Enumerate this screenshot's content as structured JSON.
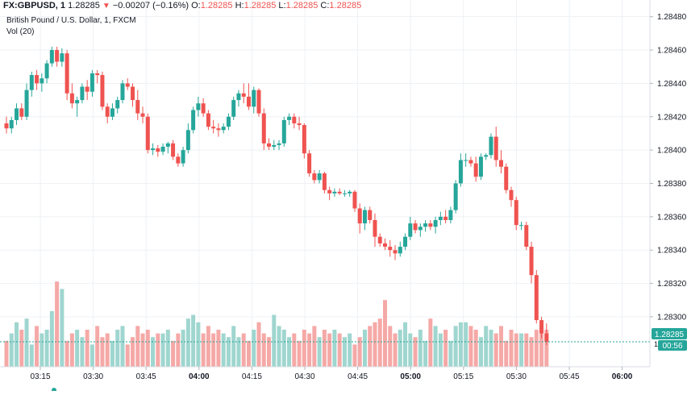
{
  "header": {
    "symbol": "FX:GBPUSD, 1",
    "last": "1.28285",
    "change": "−0.00207 (−0.16%)",
    "o_label": "O:",
    "o_value": "1.28285",
    "h_label": "H:",
    "h_value": "1.28285",
    "l_label": "L:",
    "l_value": "1.28285",
    "c_label": "C:",
    "c_value": "1.28285",
    "subtitle": "British Pound / U.S. Dollar, 1, FXCM",
    "volume_label": "Vol (20)"
  },
  "colors": {
    "up": "#26a69a",
    "down": "#ef5350",
    "vol_up": "#9fd6cf",
    "vol_down": "#f5a9a7",
    "grid": "#eef1f5",
    "price_line": "#26a69a",
    "timer_bg": "#26a69a"
  },
  "chart_data": {
    "type": "candlestick",
    "title": "British Pound / U.S. Dollar, 1, FXCM",
    "x_ticks": [
      "03:15",
      "03:30",
      "03:45",
      "04:00",
      "04:15",
      "04:30",
      "04:45",
      "05:00",
      "05:15",
      "05:30",
      "05:45",
      "06:00"
    ],
    "y_ticks": [
      "1.28480",
      "1.28460",
      "1.28440",
      "1.28420",
      "1.28400",
      "1.28380",
      "1.28360",
      "1.28340",
      "1.28320",
      "1.28300"
    ],
    "ylim": [
      1.2827,
      1.2849
    ],
    "last_price_label": "1.28285",
    "countdown": "00:56",
    "grid": true,
    "candles": [
      [
        1.28416,
        1.2842,
        1.2841,
        1.28413
      ],
      [
        1.28413,
        1.2842,
        1.2841,
        1.28418
      ],
      [
        1.28418,
        1.28428,
        1.28415,
        1.28425
      ],
      [
        1.28425,
        1.28428,
        1.28418,
        1.2842
      ],
      [
        1.2842,
        1.2844,
        1.28418,
        1.28436
      ],
      [
        1.28436,
        1.28447,
        1.28432,
        1.28445
      ],
      [
        1.28445,
        1.28448,
        1.28436,
        1.2844
      ],
      [
        1.2844,
        1.28446,
        1.28435,
        1.28443
      ],
      [
        1.28443,
        1.28454,
        1.2844,
        1.28452
      ],
      [
        1.28452,
        1.28462,
        1.2845,
        1.2846
      ],
      [
        1.2846,
        1.28462,
        1.2845,
        1.28453
      ],
      [
        1.28453,
        1.28461,
        1.2845,
        1.28458
      ],
      [
        1.28458,
        1.2846,
        1.2843,
        1.28434
      ],
      [
        1.28434,
        1.2844,
        1.28425,
        1.28428
      ],
      [
        1.28428,
        1.28432,
        1.2842,
        1.2843
      ],
      [
        1.2843,
        1.2844,
        1.28428,
        1.28438
      ],
      [
        1.28438,
        1.28442,
        1.2843,
        1.28435
      ],
      [
        1.28435,
        1.28448,
        1.28432,
        1.28446
      ],
      [
        1.28446,
        1.28448,
        1.2844,
        1.28445
      ],
      [
        1.28445,
        1.28447,
        1.28424,
        1.28426
      ],
      [
        1.28426,
        1.28428,
        1.28416,
        1.2842
      ],
      [
        1.2842,
        1.28428,
        1.28418,
        1.28425
      ],
      [
        1.28425,
        1.28432,
        1.28422,
        1.2843
      ],
      [
        1.2843,
        1.28442,
        1.28428,
        1.2844
      ],
      [
        1.2844,
        1.28443,
        1.28436,
        1.28438
      ],
      [
        1.28438,
        1.2844,
        1.28426,
        1.2843
      ],
      [
        1.2843,
        1.28436,
        1.28418,
        1.28422
      ],
      [
        1.28422,
        1.28426,
        1.28416,
        1.2842
      ],
      [
        1.2842,
        1.28422,
        1.28398,
        1.284
      ],
      [
        1.284,
        1.28404,
        1.28397,
        1.28401
      ],
      [
        1.28401,
        1.28403,
        1.28396,
        1.28399
      ],
      [
        1.28399,
        1.28404,
        1.28397,
        1.28402
      ],
      [
        1.28402,
        1.28405,
        1.28398,
        1.28404
      ],
      [
        1.28404,
        1.28406,
        1.28394,
        1.28396
      ],
      [
        1.28396,
        1.28398,
        1.2839,
        1.28392
      ],
      [
        1.28392,
        1.28402,
        1.2839,
        1.284
      ],
      [
        1.284,
        1.28416,
        1.28398,
        1.28412
      ],
      [
        1.28412,
        1.28426,
        1.2841,
        1.28424
      ],
      [
        1.28424,
        1.28432,
        1.2842,
        1.28428
      ],
      [
        1.28428,
        1.28431,
        1.2842,
        1.28422
      ],
      [
        1.28422,
        1.28424,
        1.28412,
        1.28414
      ],
      [
        1.28414,
        1.28418,
        1.2841,
        1.28413
      ],
      [
        1.28413,
        1.28416,
        1.28408,
        1.28412
      ],
      [
        1.28412,
        1.28416,
        1.2841,
        1.28414
      ],
      [
        1.28414,
        1.28422,
        1.28412,
        1.2842
      ],
      [
        1.2842,
        1.28432,
        1.28418,
        1.2843
      ],
      [
        1.2843,
        1.28436,
        1.28426,
        1.28434
      ],
      [
        1.28434,
        1.2844,
        1.28428,
        1.28432
      ],
      [
        1.28432,
        1.2844,
        1.28424,
        1.28426
      ],
      [
        1.28426,
        1.28438,
        1.28422,
        1.28436
      ],
      [
        1.28436,
        1.28437,
        1.2842,
        1.28422
      ],
      [
        1.28422,
        1.28425,
        1.284,
        1.28404
      ],
      [
        1.28404,
        1.28407,
        1.284,
        1.28402
      ],
      [
        1.28402,
        1.28406,
        1.284,
        1.28403
      ],
      [
        1.28403,
        1.28406,
        1.284,
        1.28404
      ],
      [
        1.28404,
        1.2842,
        1.28402,
        1.28418
      ],
      [
        1.28418,
        1.28422,
        1.28415,
        1.2842
      ],
      [
        1.2842,
        1.28422,
        1.28413,
        1.28416
      ],
      [
        1.28416,
        1.2842,
        1.28412,
        1.28415
      ],
      [
        1.28415,
        1.28416,
        1.28395,
        1.28398
      ],
      [
        1.28398,
        1.284,
        1.28384,
        1.28386
      ],
      [
        1.28386,
        1.28388,
        1.2838,
        1.28382
      ],
      [
        1.28382,
        1.28388,
        1.2838,
        1.28386
      ],
      [
        1.28386,
        1.28387,
        1.28374,
        1.28376
      ],
      [
        1.28376,
        1.28378,
        1.2837,
        1.28374
      ],
      [
        1.28374,
        1.28377,
        1.28372,
        1.28375
      ],
      [
        1.28375,
        1.28377,
        1.28373,
        1.28374
      ],
      [
        1.28374,
        1.28376,
        1.28372,
        1.28374
      ],
      [
        1.28374,
        1.28376,
        1.28372,
        1.28375
      ],
      [
        1.28375,
        1.28376,
        1.28363,
        1.28365
      ],
      [
        1.28365,
        1.28368,
        1.2835,
        1.28356
      ],
      [
        1.28356,
        1.28366,
        1.28352,
        1.28364
      ],
      [
        1.28364,
        1.28366,
        1.28356,
        1.28358
      ],
      [
        1.28358,
        1.28362,
        1.28342,
        1.28348
      ],
      [
        1.28348,
        1.2835,
        1.28342,
        1.28344
      ],
      [
        1.28344,
        1.28347,
        1.2834,
        1.28342
      ],
      [
        1.28342,
        1.28346,
        1.28336,
        1.2834
      ],
      [
        1.2834,
        1.28343,
        1.28334,
        1.28338
      ],
      [
        1.28338,
        1.28345,
        1.28336,
        1.28342
      ],
      [
        1.28342,
        1.2835,
        1.2834,
        1.28348
      ],
      [
        1.28348,
        1.2836,
        1.28346,
        1.28356
      ],
      [
        1.28356,
        1.28358,
        1.2835,
        1.28352
      ],
      [
        1.28352,
        1.28356,
        1.28348,
        1.28354
      ],
      [
        1.28354,
        1.28358,
        1.28351,
        1.28356
      ],
      [
        1.28356,
        1.28358,
        1.28352,
        1.28354
      ],
      [
        1.28354,
        1.2836,
        1.2835,
        1.28358
      ],
      [
        1.28358,
        1.28363,
        1.28355,
        1.2836
      ],
      [
        1.2836,
        1.28364,
        1.28356,
        1.28358
      ],
      [
        1.28358,
        1.28366,
        1.28356,
        1.28364
      ],
      [
        1.28364,
        1.28382,
        1.28362,
        1.2838
      ],
      [
        1.2838,
        1.28398,
        1.28378,
        1.28394
      ],
      [
        1.28394,
        1.28398,
        1.2839,
        1.28394
      ],
      [
        1.28394,
        1.28396,
        1.2839,
        1.28392
      ],
      [
        1.28392,
        1.28396,
        1.28381,
        1.28384
      ],
      [
        1.28384,
        1.28398,
        1.28382,
        1.28396
      ],
      [
        1.28396,
        1.28398,
        1.28394,
        1.28397
      ],
      [
        1.28397,
        1.2841,
        1.28395,
        1.28408
      ],
      [
        1.28408,
        1.28414,
        1.2839,
        1.28394
      ],
      [
        1.28394,
        1.284,
        1.28386,
        1.2839
      ],
      [
        1.2839,
        1.28392,
        1.28374,
        1.28376
      ],
      [
        1.28376,
        1.28378,
        1.28366,
        1.2837
      ],
      [
        1.2837,
        1.28372,
        1.28352,
        1.28355
      ],
      [
        1.28355,
        1.28357,
        1.28352,
        1.28355
      ],
      [
        1.28355,
        1.28357,
        1.2834,
        1.28342
      ],
      [
        1.28342,
        1.28345,
        1.2832,
        1.28325
      ],
      [
        1.28325,
        1.28328,
        1.28296,
        1.28298
      ],
      [
        1.28298,
        1.283,
        1.28287,
        1.2829
      ],
      [
        1.2829,
        1.28296,
        1.28283,
        1.28285
      ]
    ],
    "volume": [
      7,
      9,
      12,
      10,
      13,
      6,
      11,
      9,
      10,
      15,
      23,
      21,
      7,
      9,
      10,
      8,
      10,
      6,
      11,
      8,
      9,
      7,
      10,
      11,
      6,
      8,
      11,
      9,
      10,
      8,
      9,
      9,
      10,
      7,
      9,
      10,
      13,
      14,
      12,
      9,
      11,
      9,
      10,
      9,
      8,
      11,
      8,
      9,
      7,
      10,
      12,
      9,
      8,
      14,
      11,
      10,
      8,
      9,
      7,
      10,
      9,
      11,
      8,
      10,
      9,
      10,
      9,
      8,
      9,
      6,
      8,
      10,
      11,
      12,
      13,
      18,
      11,
      9,
      10,
      12,
      9,
      8,
      10,
      7,
      13,
      11,
      9,
      10,
      7,
      11,
      12,
      12,
      11,
      10,
      8,
      11,
      10,
      9,
      11,
      7,
      10,
      9,
      9,
      9,
      8,
      10,
      11,
      10
    ]
  }
}
